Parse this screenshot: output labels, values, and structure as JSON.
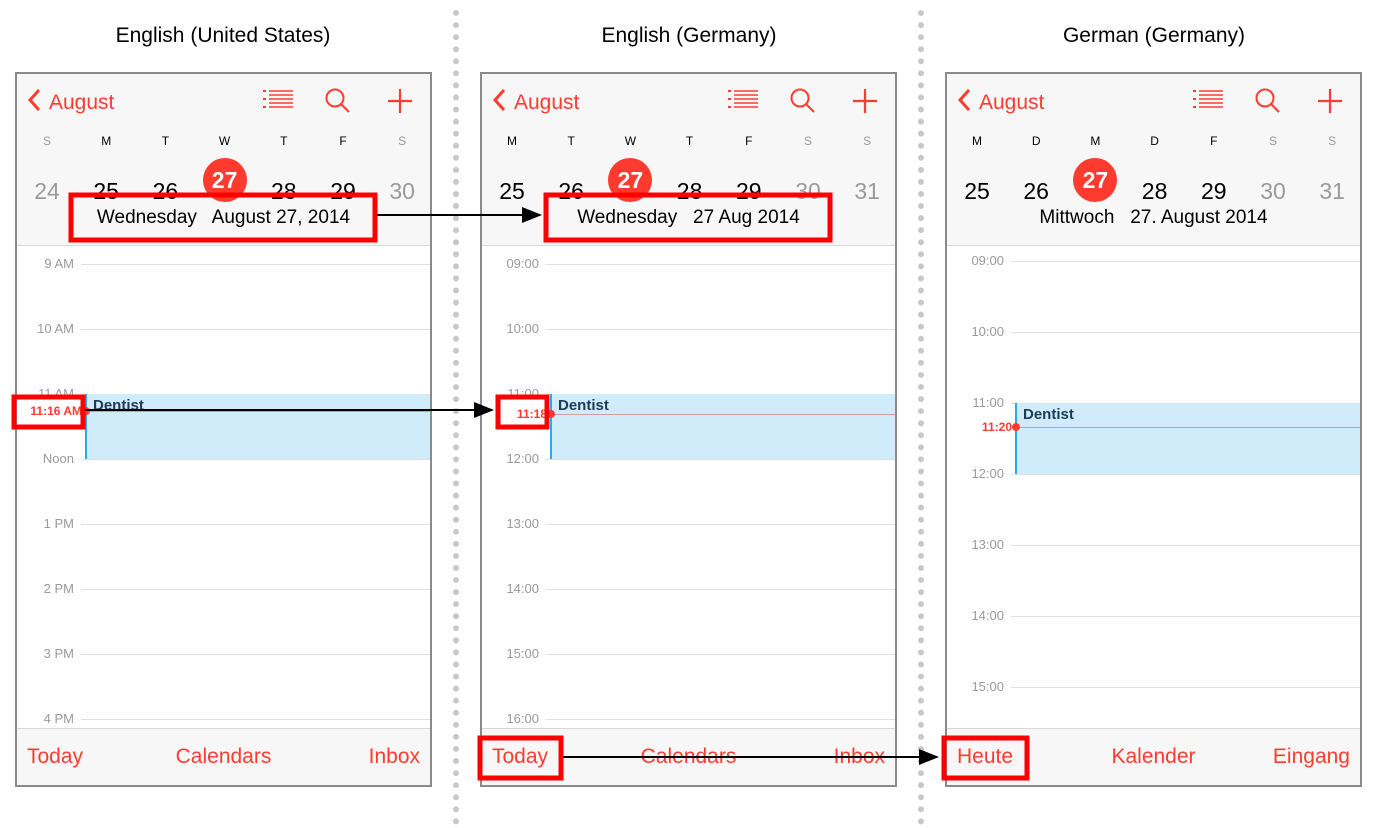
{
  "colors": {
    "accent": "#ff3b30",
    "highlight": "#ff0000",
    "event_fill": "#d0ecfb",
    "event_border": "#2ca8e8"
  },
  "panels": [
    {
      "title": "English (United States)",
      "back_label": "August",
      "icons": [
        "list-icon",
        "search-icon",
        "plus-icon"
      ],
      "weekdays": [
        "S",
        "M",
        "T",
        "W",
        "T",
        "F",
        "S"
      ],
      "dates": [
        "24",
        "25",
        "26",
        "27",
        "28",
        "29",
        "30"
      ],
      "weekend": [
        0,
        6
      ],
      "today_index": 3,
      "date_label": "Wednesday   August 27, 2014",
      "hours": [
        "9 AM",
        "10 AM",
        "11 AM",
        "Noon",
        "1 PM",
        "2 PM",
        "3 PM",
        "4 PM"
      ],
      "first_hour": 9,
      "event": {
        "title": "Dentist",
        "start": 11,
        "end": 12
      },
      "now": {
        "label": "11:16 AM",
        "time": 11.2667
      },
      "toolbar": [
        "Today",
        "Calendars",
        "Inbox"
      ]
    },
    {
      "title": "English (Germany)",
      "back_label": "August",
      "icons": [
        "list-icon",
        "search-icon",
        "plus-icon"
      ],
      "weekdays": [
        "M",
        "T",
        "W",
        "T",
        "F",
        "S",
        "S"
      ],
      "dates": [
        "25",
        "26",
        "27",
        "28",
        "29",
        "30",
        "31"
      ],
      "weekend": [
        5,
        6
      ],
      "today_index": 2,
      "date_label": "Wednesday   27 Aug 2014",
      "hours": [
        "09:00",
        "10:00",
        "11:00",
        "12:00",
        "13:00",
        "14:00",
        "15:00",
        "16:00"
      ],
      "first_hour": 9,
      "event": {
        "title": "Dentist",
        "start": 11,
        "end": 12
      },
      "now": {
        "label": "11:18",
        "time": 11.3
      },
      "toolbar": [
        "Today",
        "Calendars",
        "Inbox"
      ]
    },
    {
      "title": "German (Germany)",
      "back_label": "August",
      "icons": [
        "list-icon",
        "search-icon",
        "plus-icon"
      ],
      "weekdays": [
        "M",
        "D",
        "M",
        "D",
        "F",
        "S",
        "S"
      ],
      "dates": [
        "25",
        "26",
        "27",
        "28",
        "29",
        "30",
        "31"
      ],
      "weekend": [
        5,
        6
      ],
      "today_index": 2,
      "date_label": "Mittwoch   27. August 2014",
      "hours": [
        "09:00",
        "10:00",
        "11:00",
        "12:00",
        "13:00",
        "14:00",
        "15:00"
      ],
      "first_hour": 9,
      "event": {
        "title": "Dentist",
        "start": 11,
        "end": 12
      },
      "now": {
        "label": "11:20",
        "time": 11.3333
      },
      "toolbar": [
        "Heute",
        "Kalender",
        "Eingang"
      ]
    }
  ]
}
